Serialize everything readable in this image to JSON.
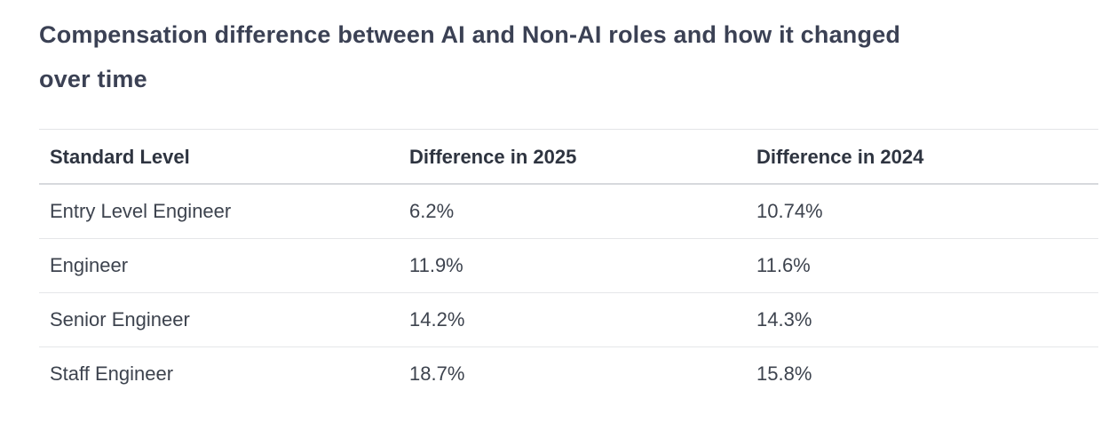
{
  "page": {
    "title_line1": "Compensation difference between AI and Non-AI roles and how it changed",
    "title_line2": "over time"
  },
  "table": {
    "columns": [
      "Standard Level",
      "Difference in 2025",
      "Difference in 2024"
    ],
    "rows": [
      {
        "level": "Entry Level Engineer",
        "diff_2025": "6.2%",
        "diff_2024": "10.74%"
      },
      {
        "level": "Engineer",
        "diff_2025": "11.9%",
        "diff_2024": "11.6%"
      },
      {
        "level": "Senior Engineer",
        "diff_2025": "14.2%",
        "diff_2024": "14.3%"
      },
      {
        "level": "Staff Engineer",
        "diff_2025": "18.7%",
        "diff_2024": "15.8%"
      }
    ]
  },
  "colors": {
    "background": "#ffffff",
    "title_text": "#3b4154",
    "header_text": "#2e3440",
    "body_text": "#3d434e",
    "table_top_border": "#e3e4e7",
    "header_underline": "#d7d9dd",
    "row_separator": "#e5e6e9"
  },
  "chart_data": {
    "type": "table",
    "title": "Compensation difference between AI and Non-AI roles and how it changed over time",
    "columns": [
      "Standard Level",
      "Difference in 2025",
      "Difference in 2024"
    ],
    "categories": [
      "Entry Level Engineer",
      "Engineer",
      "Senior Engineer",
      "Staff Engineer"
    ],
    "series": [
      {
        "name": "Difference in 2025",
        "values": [
          6.2,
          11.9,
          14.2,
          18.7
        ],
        "unit": "%"
      },
      {
        "name": "Difference in 2024",
        "values": [
          10.74,
          11.6,
          14.3,
          15.8
        ],
        "unit": "%"
      }
    ],
    "rows": [
      [
        "Entry Level Engineer",
        "6.2%",
        "10.74%"
      ],
      [
        "Engineer",
        "11.9%",
        "11.6%"
      ],
      [
        "Senior Engineer",
        "14.2%",
        "14.3%"
      ],
      [
        "Staff Engineer",
        "18.7%",
        "15.8%"
      ]
    ]
  }
}
